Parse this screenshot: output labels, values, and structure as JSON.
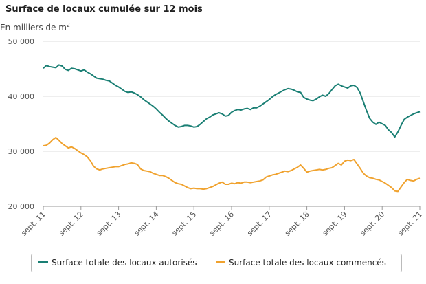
{
  "chart_data": {
    "type": "line",
    "title": "Surface de locaux cumulée sur 12 mois",
    "ylabel": "En milliers de m",
    "ylabel_sup": "2",
    "ylim": [
      20000,
      50000
    ],
    "yticks": [
      "20 000",
      "30 000",
      "40 000",
      "50 000"
    ],
    "ytick_values": [
      20000,
      30000,
      40000,
      50000
    ],
    "xticks": [
      "sept. 11",
      "sept. 12",
      "sept. 13",
      "sept. 14",
      "sept. 15",
      "sept. 16",
      "sept. 17",
      "sept. 18",
      "sept. 19",
      "sept. 20",
      "sept. 21"
    ],
    "grid": "horizontal",
    "legend_position": "bottom",
    "series": [
      {
        "name": "Surface totale des locaux autorisés",
        "color": "#1a7f74",
        "values": [
          45100,
          45600,
          45400,
          45300,
          45200,
          45700,
          45500,
          44900,
          44700,
          45100,
          45000,
          44800,
          44600,
          44800,
          44400,
          44100,
          43700,
          43300,
          43200,
          43100,
          42900,
          42800,
          42400,
          42000,
          41700,
          41300,
          40900,
          40700,
          40800,
          40600,
          40300,
          39900,
          39400,
          39000,
          38600,
          38200,
          37700,
          37100,
          36600,
          36000,
          35500,
          35100,
          34700,
          34400,
          34500,
          34700,
          34700,
          34600,
          34400,
          34500,
          34900,
          35400,
          35900,
          36200,
          36600,
          36800,
          37000,
          36800,
          36400,
          36500,
          37100,
          37400,
          37600,
          37500,
          37700,
          37800,
          37600,
          37900,
          37900,
          38200,
          38600,
          39000,
          39400,
          39900,
          40300,
          40600,
          40900,
          41200,
          41400,
          41300,
          41100,
          40800,
          40700,
          39800,
          39500,
          39300,
          39200,
          39500,
          39900,
          40200,
          40000,
          40500,
          41200,
          41900,
          42200,
          41900,
          41700,
          41500,
          41900,
          42000,
          41600,
          40600,
          39000,
          37400,
          36000,
          35300,
          34900,
          35300,
          35000,
          34700,
          33900,
          33400,
          32600,
          33500,
          34700,
          35800,
          36200,
          36500,
          36800,
          37000,
          37200
        ]
      },
      {
        "name": "Surface totale des locaux commencés",
        "color": "#f0a22e",
        "values": [
          31000,
          31100,
          31500,
          32100,
          32500,
          32000,
          31400,
          31000,
          30600,
          30800,
          30500,
          30100,
          29700,
          29400,
          29000,
          28300,
          27300,
          26800,
          26600,
          26800,
          26900,
          27000,
          27100,
          27200,
          27200,
          27400,
          27600,
          27700,
          27900,
          27800,
          27600,
          26800,
          26500,
          26400,
          26300,
          26000,
          25800,
          25600,
          25600,
          25400,
          25100,
          24700,
          24300,
          24100,
          24000,
          23700,
          23400,
          23200,
          23300,
          23200,
          23200,
          23100,
          23200,
          23400,
          23600,
          23900,
          24200,
          24400,
          24000,
          24000,
          24200,
          24100,
          24300,
          24200,
          24400,
          24400,
          24300,
          24400,
          24500,
          24600,
          24800,
          25300,
          25500,
          25700,
          25800,
          26000,
          26200,
          26400,
          26300,
          26500,
          26800,
          27100,
          27500,
          26900,
          26200,
          26400,
          26500,
          26600,
          26700,
          26600,
          26700,
          26900,
          27000,
          27400,
          27800,
          27500,
          28200,
          28400,
          28300,
          28500,
          27700,
          26900,
          26000,
          25500,
          25200,
          25100,
          24900,
          24800,
          24500,
          24200,
          23800,
          23400,
          22800,
          22700,
          23500,
          24300,
          24900,
          24700,
          24600,
          24900,
          25100
        ]
      }
    ]
  }
}
